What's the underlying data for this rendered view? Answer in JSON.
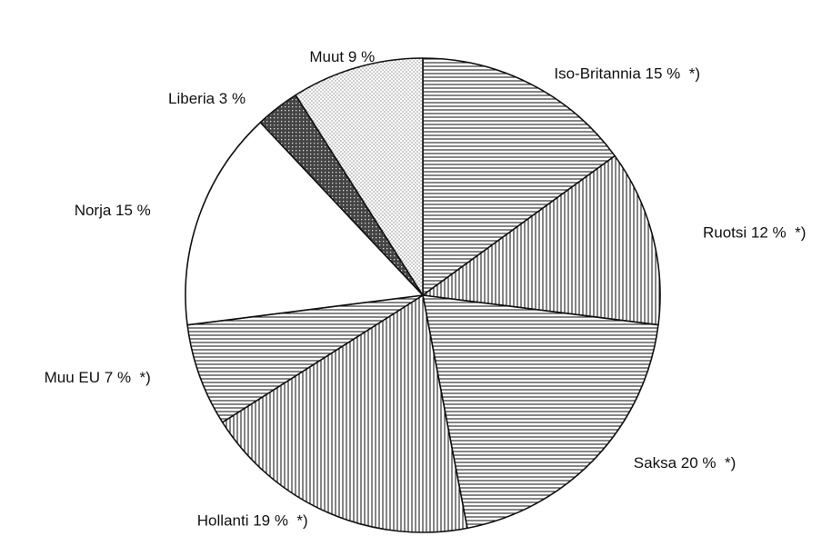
{
  "chart_data": {
    "type": "pie",
    "categories": [
      "Iso-Britannia",
      "Ruotsi",
      "Saksa",
      "Hollanti",
      "Muu EU",
      "Norja",
      "Liberia",
      "Muut"
    ],
    "values": [
      15,
      12,
      20,
      19,
      7,
      15,
      3,
      9
    ],
    "value_labels": [
      "15 %  *)",
      "12 %  *)",
      "20 %  *)",
      "19 %  *)",
      "7 %  *)",
      "15 %",
      "3 %",
      "9 %"
    ],
    "patterns": [
      "horizontal",
      "vertical",
      "horizontal",
      "vertical",
      "horizontal",
      "none",
      "crosshatch",
      "dots"
    ]
  }
}
